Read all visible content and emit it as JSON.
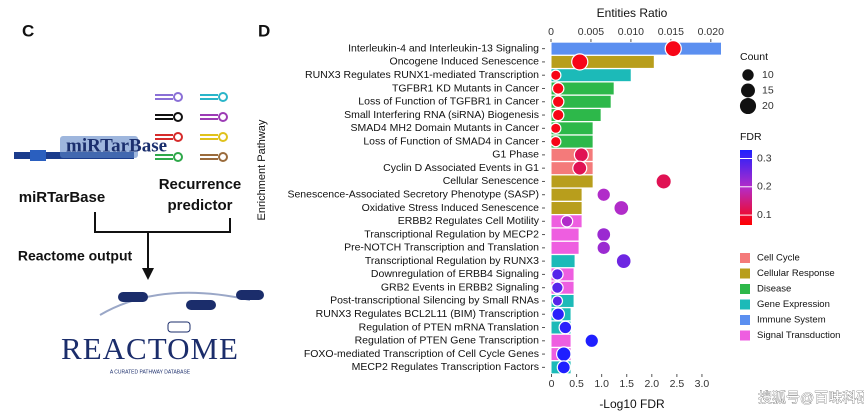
{
  "panel_c": {
    "label": "C",
    "mirtarbase_logo": "miRTarBase",
    "mirtarbase": "miRTarBase",
    "recurrence_lines": [
      "Recurrence",
      "predictor"
    ],
    "reactome_output": "Reactome output",
    "reactome_logo": "REACTOME",
    "reactome_sub": "A CURATED PATHWAY DATABASE"
  },
  "watermark": "搜狐号@百味科研芝士",
  "chart_data": {
    "type": "enrichment",
    "panel_label": "D",
    "title": "Entities Ratio",
    "xlabel": "-Log10 FDR",
    "ylabel": "Enrichment Pathway",
    "categories": [
      "Interleukin-4 and Interleukin-13 Signaling",
      "Oncogene Induced Senescence",
      "RUNX3 Regulates RUNX1-mediated Transcription",
      "TGFBR1 KD Mutants in Cancer",
      "Loss of Function of TGFBR1 in Cancer",
      "Small Interfering RNA (siRNA) Biogenesis",
      "SMAD4 MH2 Domain Mutants in Cancer",
      "Loss of Function of SMAD4 in Cancer",
      "G1 Phase",
      "Cyclin D Associated Events in G1",
      "Cellular Senescence",
      "Senescence-Associated Secretory Phenotype (SASP)",
      "Oxidative Stress Induced Senescence",
      "ERBB2 Regulates Cell Motility",
      "Transcriptional Regulation by MECP2",
      "Pre-NOTCH Transcription and Translation",
      "Transcriptional Regulation by RUNX3",
      "Downregulation of ERBB4 Signaling",
      "GRB2 Events in ERBB2 Signaling",
      "Post-transcriptional Silencing by Small RNAs",
      "RUNX3 Regulates BCL2L11 (BIM) Transcription",
      "Regulation of PTEN mRNA Translation",
      "Regulation of PTEN Gene Transcription",
      "FOXO-mediated Transcription of Cell Cycle Genes",
      "MECP2 Regulates Transcription Factors"
    ],
    "values": [
      3.38,
      2.04,
      1.58,
      1.24,
      1.18,
      0.98,
      0.82,
      0.82,
      0.82,
      0.82,
      0.82,
      0.6,
      0.6,
      0.6,
      0.54,
      0.54,
      0.46,
      0.44,
      0.44,
      0.44,
      0.38,
      0.38,
      0.38,
      0.38,
      0.38
    ],
    "bar_group": [
      "Immune System",
      "Cellular Response",
      "Gene Expression",
      "Disease",
      "Disease",
      "Disease",
      "Disease",
      "Disease",
      "Cell Cycle",
      "Cell Cycle",
      "Cellular Response",
      "Cellular Response",
      "Cellular Response",
      "Signal Transduction",
      "Signal Transduction",
      "Signal Transduction",
      "Gene Expression",
      "Signal Transduction",
      "Signal Transduction",
      "Gene Expression",
      "Gene Expression",
      "Gene Expression",
      "Signal Transduction",
      "Signal Transduction",
      "Gene Expression"
    ],
    "groups": [
      {
        "name": "Cell Cycle",
        "color": "#f47a7a"
      },
      {
        "name": "Cellular Response",
        "color": "#b89e1c"
      },
      {
        "name": "Disease",
        "color": "#2db84a"
      },
      {
        "name": "Gene Expression",
        "color": "#1cbab8"
      },
      {
        "name": "Immune System",
        "color": "#5b8ff0"
      },
      {
        "name": "Signal Transduction",
        "color": "#ee5ee0"
      }
    ],
    "ratio": [
      0.0153,
      0.0036,
      0.0006,
      0.0009,
      0.0009,
      0.0009,
      0.0006,
      0.0006,
      0.0038,
      0.0036,
      0.0141,
      0.0066,
      0.0088,
      0.002,
      0.0066,
      0.0066,
      0.0091,
      0.0008,
      0.0008,
      0.0008,
      0.0009,
      0.0018,
      0.0051,
      0.0016,
      0.0016
    ],
    "count": [
      20,
      20,
      8,
      10,
      10,
      10,
      8,
      8,
      15,
      15,
      18,
      14,
      17,
      10,
      15,
      14,
      17,
      10,
      10,
      8,
      12,
      12,
      14,
      16,
      13
    ],
    "fdr": [
      0.08,
      0.08,
      0.08,
      0.08,
      0.08,
      0.08,
      0.08,
      0.08,
      0.12,
      0.12,
      0.12,
      0.2,
      0.2,
      0.2,
      0.22,
      0.22,
      0.26,
      0.28,
      0.28,
      0.28,
      0.32,
      0.32,
      0.33,
      0.34,
      0.34
    ],
    "xlim": [
      -0.13,
      3.4
    ],
    "xticks": [
      0,
      0.5,
      {
        "value": 1,
        "label": "1.0"
      },
      1.5,
      {
        "value": 2,
        "label": "2.0"
      },
      2.5,
      {
        "value": 3,
        "label": "3.0"
      }
    ],
    "x2lim": [
      -0.00075,
      0.0214
    ],
    "x2ticks": [
      0,
      0.005,
      {
        "value": 0.01,
        "label": "0.010"
      },
      0.015,
      {
        "value": 0.02,
        "label": "0.020"
      }
    ],
    "count_legend": {
      "title": "Count",
      "values": [
        10,
        15,
        20
      ]
    },
    "fdr_legend": {
      "title": "FDR",
      "lim": [
        0.065,
        0.33
      ],
      "ticks": [
        0.1,
        0.2,
        0.3
      ],
      "colors": [
        "#ff0000",
        "#b42cc8",
        "#1f1fff"
      ]
    }
  }
}
